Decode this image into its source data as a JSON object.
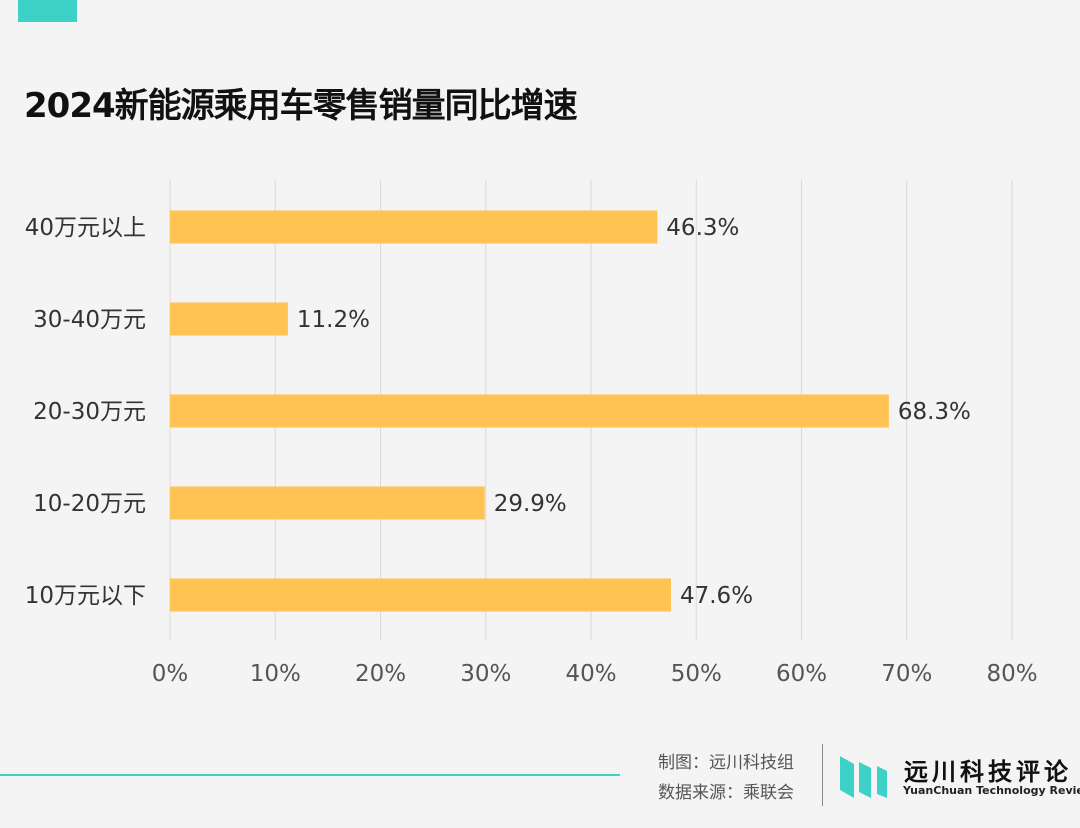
{
  "header": {
    "title": "2024新能源乘用车零售销量同比增速"
  },
  "chart_data": {
    "type": "bar",
    "orientation": "horizontal",
    "title": "2024新能源乘用车零售销量同比增速",
    "categories": [
      "40万元以上",
      "30-40万元",
      "20-30万元",
      "10-20万元",
      "10万元以下"
    ],
    "values": [
      46.3,
      11.2,
      68.3,
      29.9,
      47.6
    ],
    "value_labels": [
      "46.3%",
      "11.2%",
      "68.3%",
      "29.9%",
      "47.6%"
    ],
    "xlim": [
      0,
      80
    ],
    "xticks": [
      0,
      10,
      20,
      30,
      40,
      50,
      60,
      70,
      80
    ],
    "xtick_labels": [
      "0%",
      "10%",
      "20%",
      "30%",
      "40%",
      "50%",
      "60%",
      "70%",
      "80%"
    ],
    "xlabel": "",
    "ylabel": "",
    "grid": "vertical",
    "legend": "none",
    "bar_color": "#fec352",
    "grid_color": "#d9d9d9"
  },
  "footer": {
    "credit_maker": "制图：远川科技组",
    "credit_source": "数据来源：乘联会",
    "logo_cn": "远川科技评论",
    "logo_en": "YuanChuan Technology Review",
    "accent_color": "#3ed1c8"
  }
}
